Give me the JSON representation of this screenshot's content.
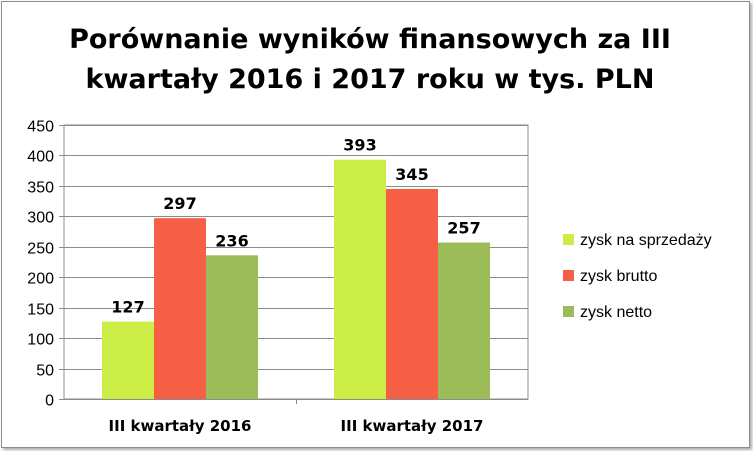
{
  "chart_data": {
    "type": "bar",
    "title": "Porównanie wyników finansowych za III kwartały 2016 i 2017 roku w tys. PLN",
    "categories": [
      "III kwartały 2016",
      "III kwartały 2017"
    ],
    "series": [
      {
        "name": "zysk na sprzedaży",
        "values": [
          127,
          393
        ],
        "color": "#ccec46"
      },
      {
        "name": "zysk brutto",
        "values": [
          297,
          345
        ],
        "color": "#f55f45"
      },
      {
        "name": "zysk netto",
        "values": [
          236,
          257
        ],
        "color": "#9cbb59"
      }
    ],
    "ylim": [
      0,
      450
    ],
    "yticks": [
      0,
      50,
      100,
      150,
      200,
      250,
      300,
      350,
      400,
      450
    ],
    "grid": true,
    "legend": "right",
    "data_labels": true
  }
}
